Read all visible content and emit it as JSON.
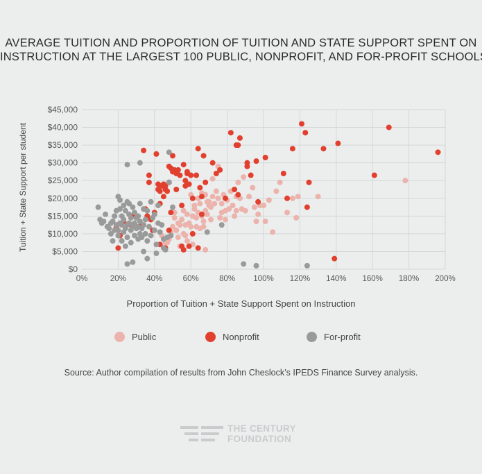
{
  "title": {
    "line1": "AVERAGE TUITION AND PROPORTION OF TUITION AND STATE SUPPORT SPENT ON",
    "line2": "INSTRUCTION AT THE LARGEST 100 PUBLIC, NONPROFIT, AND FOR-PROFIT SCHOOLS"
  },
  "legend": {
    "public": "Public",
    "nonprofit": "Nonprofit",
    "forprofit": "For-profit"
  },
  "source": "Source: Author compilation of results from John Cheslock’s IPEDS Finance Survey analysis.",
  "logo": {
    "line1": "THE CENTURY",
    "line2": "FOUNDATION"
  },
  "colors": {
    "public": "#ebb3ac",
    "nonprofit": "#e2402f",
    "forprofit": "#9a9a9a",
    "grid": "#d4d7d7"
  },
  "chart_data": {
    "type": "scatter",
    "title": "AVERAGE TUITION AND PROPORTION OF TUITION AND STATE SUPPORT SPENT ON INSTRUCTION AT THE LARGEST 100 PUBLIC, NONPROFIT, AND FOR-PROFIT SCHOOLS",
    "xlabel": "Proportion of Tuition + State Support Spent on Instruction",
    "ylabel": "Tuition + State Support per student",
    "xlim": [
      0,
      200
    ],
    "ylim": [
      0,
      45000
    ],
    "xticks": [
      "0%",
      "20%",
      "40%",
      "60%",
      "80%",
      "100%",
      "120%",
      "140%",
      "160%",
      "180%",
      "200%"
    ],
    "yticks": [
      "$0",
      "$5,000",
      "$10,000",
      "$15,000",
      "$20,000",
      "$25,000",
      "$30,000",
      "$35,000",
      "$40,000",
      "$45,000"
    ],
    "grid": true,
    "legend_position": "bottom",
    "series": [
      {
        "name": "Public",
        "points": [
          [
            44,
            9500
          ],
          [
            46,
            7500
          ],
          [
            48,
            8500
          ],
          [
            49,
            10500
          ],
          [
            50,
            12000
          ],
          [
            51,
            14500
          ],
          [
            52,
            11000
          ],
          [
            53,
            13000
          ],
          [
            54,
            12500
          ],
          [
            55,
            14000
          ],
          [
            56,
            10000
          ],
          [
            57,
            12500
          ],
          [
            58,
            15500
          ],
          [
            59,
            13000
          ],
          [
            60,
            12000
          ],
          [
            61,
            15000
          ],
          [
            62,
            17000
          ],
          [
            63,
            14500
          ],
          [
            64,
            16000
          ],
          [
            65,
            18500
          ],
          [
            66,
            15000
          ],
          [
            67,
            13500
          ],
          [
            68,
            16500
          ],
          [
            69,
            15500
          ],
          [
            70,
            19000
          ],
          [
            71,
            17500
          ],
          [
            72,
            20500
          ],
          [
            73,
            18500
          ],
          [
            74,
            22000
          ],
          [
            75,
            20000
          ],
          [
            76,
            14500
          ],
          [
            77,
            18500
          ],
          [
            78,
            21000
          ],
          [
            79,
            16500
          ],
          [
            80,
            19500
          ],
          [
            81,
            17000
          ],
          [
            82,
            22000
          ],
          [
            83,
            18000
          ],
          [
            84,
            15000
          ],
          [
            85,
            20500
          ],
          [
            86,
            24500
          ],
          [
            88,
            17000
          ],
          [
            89,
            26000
          ],
          [
            90,
            16500
          ],
          [
            92,
            20500
          ],
          [
            94,
            23000
          ],
          [
            95,
            17500
          ],
          [
            97,
            15500
          ],
          [
            98,
            18000
          ],
          [
            100,
            18000
          ],
          [
            101,
            13500
          ],
          [
            103,
            19500
          ],
          [
            105,
            10500
          ],
          [
            107,
            22000
          ],
          [
            109,
            24500
          ],
          [
            113,
            16000
          ],
          [
            116,
            20000
          ],
          [
            118,
            14500
          ],
          [
            119,
            20500
          ],
          [
            130,
            20500
          ],
          [
            60,
            21000
          ],
          [
            62,
            18000
          ],
          [
            64,
            20000
          ],
          [
            66,
            21500
          ],
          [
            68,
            21000
          ],
          [
            69,
            19000
          ],
          [
            72,
            25500
          ],
          [
            75,
            29000
          ],
          [
            56,
            16500
          ],
          [
            58,
            8000
          ],
          [
            54,
            6500
          ],
          [
            53,
            9000
          ],
          [
            61,
            7000
          ],
          [
            65,
            11500
          ],
          [
            67,
            12000
          ],
          [
            68,
            5500
          ],
          [
            47,
            7500
          ],
          [
            51,
            16000
          ],
          [
            70,
            18000
          ],
          [
            77,
            16000
          ],
          [
            79,
            14000
          ],
          [
            85,
            16500
          ],
          [
            87,
            20000
          ],
          [
            91,
            30000
          ],
          [
            96,
            13500
          ],
          [
            178,
            25000
          ],
          [
            52,
            11000
          ],
          [
            57,
            9500
          ],
          [
            63,
            12000
          ],
          [
            71,
            14000
          ]
        ]
      },
      {
        "name": "Nonprofit",
        "points": [
          [
            19,
            12000
          ],
          [
            21,
            9500
          ],
          [
            23,
            13500
          ],
          [
            27,
            12500
          ],
          [
            28,
            15000
          ],
          [
            33,
            12500
          ],
          [
            34,
            33500
          ],
          [
            35,
            17000
          ],
          [
            36,
            15000
          ],
          [
            37,
            24500
          ],
          [
            37,
            26500
          ],
          [
            38,
            14000
          ],
          [
            40,
            16000
          ],
          [
            41,
            32500
          ],
          [
            42,
            22500
          ],
          [
            42,
            24000
          ],
          [
            43,
            18500
          ],
          [
            43,
            22000
          ],
          [
            44,
            23500
          ],
          [
            45,
            24000
          ],
          [
            45,
            20500
          ],
          [
            46,
            22500
          ],
          [
            46,
            23500
          ],
          [
            47,
            22000
          ],
          [
            48,
            29000
          ],
          [
            48,
            24500
          ],
          [
            49,
            28500
          ],
          [
            49,
            16000
          ],
          [
            50,
            32000
          ],
          [
            50,
            27500
          ],
          [
            51,
            28000
          ],
          [
            52,
            27000
          ],
          [
            52,
            22500
          ],
          [
            53,
            28000
          ],
          [
            54,
            26500
          ],
          [
            55,
            18000
          ],
          [
            56,
            29500
          ],
          [
            57,
            25000
          ],
          [
            57,
            23500
          ],
          [
            58,
            27500
          ],
          [
            58,
            27000
          ],
          [
            59,
            24000
          ],
          [
            60,
            26500
          ],
          [
            61,
            20000
          ],
          [
            61,
            10000
          ],
          [
            63,
            26500
          ],
          [
            64,
            34000
          ],
          [
            65,
            23000
          ],
          [
            66,
            20500
          ],
          [
            66,
            15500
          ],
          [
            67,
            32000
          ],
          [
            68,
            24500
          ],
          [
            72,
            30000
          ],
          [
            74,
            27000
          ],
          [
            76,
            28000
          ],
          [
            79,
            20000
          ],
          [
            82,
            38500
          ],
          [
            84,
            22500
          ],
          [
            85,
            35000
          ],
          [
            86,
            35000
          ],
          [
            86,
            21000
          ],
          [
            87,
            37000
          ],
          [
            91,
            30000
          ],
          [
            91,
            29000
          ],
          [
            93,
            26500
          ],
          [
            96,
            30500
          ],
          [
            97,
            19000
          ],
          [
            101,
            31500
          ],
          [
            111,
            27000
          ],
          [
            113,
            20000
          ],
          [
            116,
            34000
          ],
          [
            121,
            41000
          ],
          [
            123,
            38500
          ],
          [
            124,
            17500
          ],
          [
            125,
            24500
          ],
          [
            133,
            34000
          ],
          [
            139,
            3000
          ],
          [
            141,
            35500
          ],
          [
            161,
            26500
          ],
          [
            169,
            40000
          ],
          [
            196,
            33000
          ],
          [
            55,
            6500
          ],
          [
            56,
            5500
          ],
          [
            59,
            6500
          ],
          [
            64,
            6000
          ],
          [
            43,
            7000
          ],
          [
            46,
            6000
          ],
          [
            20,
            6000
          ],
          [
            39,
            11000
          ],
          [
            48,
            11000
          ]
        ]
      },
      {
        "name": "For-profit",
        "points": [
          [
            9,
            17500
          ],
          [
            10,
            14000
          ],
          [
            11,
            13000
          ],
          [
            12,
            13500
          ],
          [
            13,
            15500
          ],
          [
            14,
            12000
          ],
          [
            15,
            11500
          ],
          [
            16,
            13000
          ],
          [
            16,
            10000
          ],
          [
            17,
            8000
          ],
          [
            17,
            13500
          ],
          [
            18,
            11000
          ],
          [
            18,
            15000
          ],
          [
            19,
            12500
          ],
          [
            19,
            16500
          ],
          [
            20,
            9500
          ],
          [
            20,
            11000
          ],
          [
            20,
            20500
          ],
          [
            21,
            13000
          ],
          [
            21,
            17000
          ],
          [
            21,
            19500
          ],
          [
            22,
            8000
          ],
          [
            22,
            12500
          ],
          [
            22,
            15000
          ],
          [
            23,
            10500
          ],
          [
            23,
            14000
          ],
          [
            23,
            18000
          ],
          [
            24,
            6500
          ],
          [
            24,
            11500
          ],
          [
            24,
            16500
          ],
          [
            25,
            9000
          ],
          [
            25,
            12500
          ],
          [
            25,
            19000
          ],
          [
            26,
            13000
          ],
          [
            26,
            15500
          ],
          [
            26,
            18500
          ],
          [
            27,
            7500
          ],
          [
            27,
            11000
          ],
          [
            27,
            14500
          ],
          [
            28,
            12000
          ],
          [
            28,
            17500
          ],
          [
            29,
            9500
          ],
          [
            29,
            13000
          ],
          [
            29,
            16000
          ],
          [
            30,
            11500
          ],
          [
            30,
            14500
          ],
          [
            31,
            8500
          ],
          [
            31,
            12000
          ],
          [
            31,
            15000
          ],
          [
            32,
            10000
          ],
          [
            32,
            13500
          ],
          [
            32,
            18500
          ],
          [
            33,
            9000
          ],
          [
            33,
            11500
          ],
          [
            34,
            12500
          ],
          [
            34,
            17000
          ],
          [
            35,
            10000
          ],
          [
            35,
            14000
          ],
          [
            36,
            8000
          ],
          [
            36,
            16500
          ],
          [
            37,
            12000
          ],
          [
            38,
            9500
          ],
          [
            38,
            19000
          ],
          [
            39,
            14500
          ],
          [
            40,
            11000
          ],
          [
            40,
            15500
          ],
          [
            41,
            7000
          ],
          [
            42,
            13000
          ],
          [
            42,
            18000
          ],
          [
            43,
            10500
          ],
          [
            44,
            12500
          ],
          [
            45,
            8500
          ],
          [
            46,
            5500
          ],
          [
            47,
            9000
          ],
          [
            48,
            33000
          ],
          [
            48,
            24500
          ],
          [
            49,
            9500
          ],
          [
            50,
            17500
          ],
          [
            25,
            1500
          ],
          [
            28,
            2000
          ],
          [
            34,
            5000
          ],
          [
            36,
            3000
          ],
          [
            41,
            4500
          ],
          [
            45,
            6000
          ],
          [
            25,
            29500
          ],
          [
            32,
            30000
          ],
          [
            69,
            10500
          ],
          [
            77,
            12500
          ],
          [
            89,
            1500
          ],
          [
            96,
            1000
          ],
          [
            124,
            1000
          ]
        ]
      }
    ]
  }
}
